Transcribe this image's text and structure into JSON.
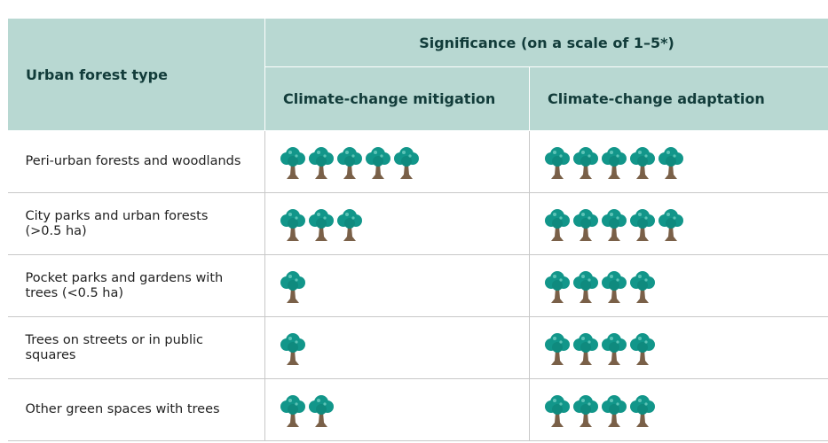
{
  "table": {
    "header": {
      "type_column": "Urban forest type",
      "group": "Significance (on a scale of 1–5*)",
      "columns": [
        "Climate-change mitigation",
        "Climate-change adaptation"
      ]
    },
    "rows": [
      {
        "label": "Peri-urban forests and woodlands",
        "values": [
          5,
          5
        ]
      },
      {
        "label": "City parks and urban forests (>0.5 ha)",
        "values": [
          3,
          5
        ]
      },
      {
        "label": "Pocket parks and gardens with trees (<0.5 ha)",
        "values": [
          1,
          4
        ]
      },
      {
        "label": "Trees on streets or in public squares",
        "values": [
          1,
          4
        ]
      },
      {
        "label": "Other green spaces with trees",
        "values": [
          2,
          4
        ]
      }
    ]
  }
}
